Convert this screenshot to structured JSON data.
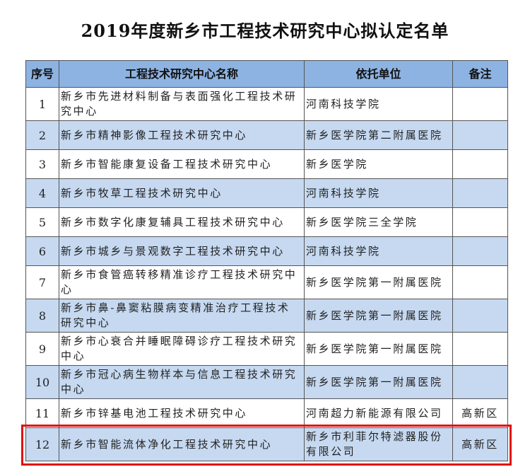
{
  "title": "2019年度新乡市工程技术研究中心拟认定名单",
  "headers": [
    "序号",
    "工程技术研究中心名称",
    "依托单位",
    "备注"
  ],
  "rows": [
    {
      "seq": "1",
      "name": "新乡市先进材料制备与表面强化工程技术研究中心",
      "unit": "河南科技学院",
      "note": ""
    },
    {
      "seq": "2",
      "name": "新乡市精神影像工程技术研究中心",
      "unit": "新乡医学院第二附属医院",
      "note": ""
    },
    {
      "seq": "3",
      "name": "新乡市智能康复设备工程技术研究中心",
      "unit": "新乡医学院",
      "note": ""
    },
    {
      "seq": "4",
      "name": "新乡市牧草工程技术研究中心",
      "unit": "河南科技学院",
      "note": ""
    },
    {
      "seq": "5",
      "name": "新乡市数字化康复辅具工程技术研究中心",
      "unit": "新乡医学院三全学院",
      "note": ""
    },
    {
      "seq": "6",
      "name": "新乡市城乡与景观数字工程技术研究中心",
      "unit": "河南科技学院",
      "note": ""
    },
    {
      "seq": "7",
      "name": "新乡市食管癌转移精准诊疗工程技术研究中心",
      "unit": "新乡医学院第一附属医院",
      "note": ""
    },
    {
      "seq": "8",
      "name": "新乡市鼻-鼻窦粘膜病变精准治疗工程技术研究中心",
      "unit": "新乡医学院第一附属医院",
      "note": ""
    },
    {
      "seq": "9",
      "name": "新乡市心衰合并睡眠障碍诊疗工程技术研究中心",
      "unit": "新乡医学院第一附属医院",
      "note": ""
    },
    {
      "seq": "10",
      "name": "新乡市冠心病生物样本与信息工程技术研究中心",
      "unit": "新乡医学院第一附属医院",
      "note": ""
    },
    {
      "seq": "11",
      "name": "新乡市锌基电池工程技术研究中心",
      "unit": "河南超力新能源有限公司",
      "note": "高新区"
    },
    {
      "seq": "12",
      "name": "新乡市智能流体净化工程技术研究中心",
      "unit": "新乡市利菲尔特滤器股份有限公司",
      "note": "高新区"
    }
  ],
  "highlighted_row": "12",
  "colors": {
    "header_bg": "#8db3e2",
    "alt_row_bg": "#c6d9f1",
    "highlight_border": "#e01010"
  }
}
